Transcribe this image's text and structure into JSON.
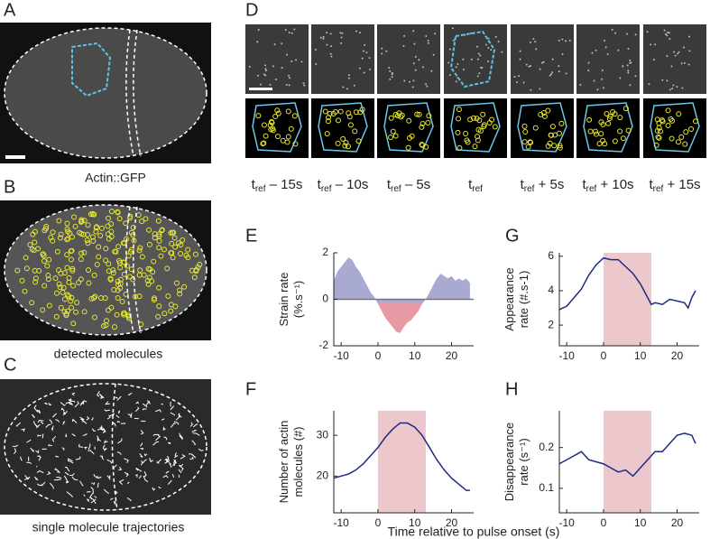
{
  "panels": [
    "A",
    "B",
    "C",
    "D",
    "E",
    "F",
    "G",
    "H"
  ],
  "captions": [
    "Actin::GFP",
    "detected molecules",
    "single molecule trajectories"
  ],
  "d_labels": [
    {
      "main": "t",
      "sub": "ref",
      "rest": " – 15s"
    },
    {
      "main": "t",
      "sub": "ref",
      "rest": " – 10s"
    },
    {
      "main": "t",
      "sub": "ref",
      "rest": " – 5s"
    },
    {
      "main": "t",
      "sub": "ref",
      "rest": ""
    },
    {
      "main": "t",
      "sub": "ref",
      "rest": " + 5s"
    },
    {
      "main": "t",
      "sub": "ref",
      "rest": " + 10s"
    },
    {
      "main": "t",
      "sub": "ref",
      "rest": " + 15s"
    }
  ],
  "x_axis_label": "Time relative to pulse onset (s)",
  "chart_data": [
    {
      "type": "area",
      "ylabel": [
        "Strain rate",
        "(%.s⁻¹)"
      ],
      "positive_color": "#a9aad2",
      "negative_color": "#e79aa4",
      "x": [
        -12,
        -11,
        -10,
        -9,
        -8,
        -7,
        -6,
        -5,
        -4,
        -3,
        -2,
        -1,
        0,
        1,
        2,
        3,
        4,
        5,
        6,
        7,
        8,
        9,
        10,
        11,
        12,
        13,
        14,
        15,
        16,
        17,
        18,
        19,
        20,
        21,
        22,
        23,
        24,
        25
      ],
      "values": [
        0.8,
        1.2,
        1.4,
        1.6,
        1.8,
        1.7,
        1.4,
        1.2,
        0.9,
        0.6,
        0.3,
        0.1,
        -0.2,
        -0.5,
        -0.8,
        -1.0,
        -1.2,
        -1.4,
        -1.45,
        -1.2,
        -1.0,
        -0.9,
        -0.7,
        -0.5,
        -0.2,
        0,
        0.3,
        0.6,
        0.9,
        1.1,
        1.0,
        0.9,
        1.0,
        0.8,
        0.9,
        0.8,
        0.9,
        0.7
      ],
      "xlim": [
        -12,
        26
      ],
      "xticks": [
        -10,
        0,
        10,
        20
      ],
      "ylim": [
        -2,
        2
      ],
      "yticks": [
        -2,
        0,
        2
      ]
    },
    {
      "type": "line",
      "ylabel": [
        "Number of actin",
        "molecules (#)"
      ],
      "color": "#1f2a80",
      "highlight": [
        0,
        13
      ],
      "highlight_color": "#ecc8cd",
      "x": [
        -12,
        -10,
        -8,
        -6,
        -4,
        -2,
        0,
        2,
        4,
        6,
        8,
        10,
        12,
        14,
        16,
        18,
        20,
        22,
        24,
        25
      ],
      "values": [
        19.5,
        20,
        20.5,
        21.5,
        23,
        25,
        27,
        29.5,
        31.5,
        33,
        33,
        32,
        30,
        27,
        24,
        21.5,
        19.5,
        18,
        16.5,
        16.5
      ],
      "xlim": [
        -12,
        26
      ],
      "xticks": [
        -10,
        0,
        10,
        20
      ],
      "ylim": [
        11,
        36
      ],
      "yticks": [
        20,
        30
      ]
    },
    {
      "type": "line",
      "ylabel": [
        "Appearance",
        "rate (#.s-1)"
      ],
      "color": "#1f2a80",
      "highlight": [
        0,
        13
      ],
      "highlight_color": "#ecc8cd",
      "x": [
        -12,
        -10,
        -8,
        -6,
        -4,
        -2,
        0,
        2,
        4,
        6,
        8,
        10,
        12,
        13,
        14,
        16,
        18,
        20,
        22,
        23,
        24,
        25
      ],
      "values": [
        2.9,
        3.1,
        3.6,
        4.1,
        4.9,
        5.5,
        5.9,
        5.8,
        5.8,
        5.4,
        5.0,
        4.4,
        3.6,
        3.2,
        3.3,
        3.2,
        3.5,
        3.4,
        3.3,
        3.0,
        3.6,
        4.0
      ],
      "xlim": [
        -12,
        26
      ],
      "xticks": [
        -10,
        0,
        10,
        20
      ],
      "ylim": [
        0.8,
        6.2
      ],
      "yticks": [
        2,
        4,
        6
      ]
    },
    {
      "type": "line",
      "ylabel": [
        "Disappearance",
        "rate (s⁻¹)"
      ],
      "color": "#1f2a80",
      "highlight": [
        0,
        13
      ],
      "highlight_color": "#ecc8cd",
      "x": [
        -12,
        -10,
        -8,
        -6,
        -4,
        -2,
        0,
        2,
        4,
        6,
        8,
        10,
        12,
        14,
        16,
        18,
        20,
        22,
        24,
        25
      ],
      "values": [
        0.16,
        0.17,
        0.18,
        0.19,
        0.17,
        0.165,
        0.16,
        0.15,
        0.14,
        0.145,
        0.13,
        0.15,
        0.17,
        0.19,
        0.19,
        0.21,
        0.23,
        0.235,
        0.23,
        0.21
      ],
      "xlim": [
        -12,
        26
      ],
      "xticks": [
        -10,
        0,
        10,
        20
      ],
      "ylim": [
        0.04,
        0.29
      ],
      "yticks": [
        0.1,
        0.2
      ]
    }
  ]
}
